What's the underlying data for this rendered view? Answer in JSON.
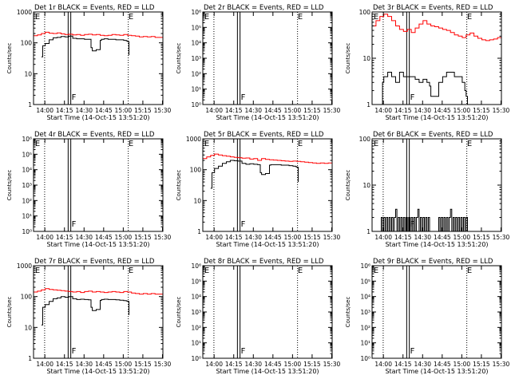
{
  "shared": {
    "ylabel": "Counts/sec",
    "xlabel": "Start Time (14-Oct-15 13:51:20)",
    "time_ticks": [
      "14:00",
      "14:15",
      "14:30",
      "14:45",
      "15:00",
      "15:15",
      "15:30"
    ],
    "legend_text": "BLACK = Events, RED = LLD",
    "events_color": "#000000",
    "lld_color": "#ff0000",
    "y_scale": "log",
    "grid": false
  },
  "chart_data": [
    {
      "type": "line",
      "title": "Det 1r BLACK = Events, RED = LLD",
      "x_tick_labels": [
        "14:00",
        "14:15",
        "14:30",
        "14:45",
        "15:00",
        "15:15",
        "15:30"
      ],
      "ylim": [
        1,
        1000
      ],
      "y_tick_labels": [
        "1",
        "10",
        "100",
        "1000"
      ],
      "markers": [
        {
          "label": "E",
          "time_min": 0.5
        },
        {
          "label": "F",
          "time_min": 28.5
        },
        {
          "label": "E",
          "time_min": 72.0
        }
      ],
      "dotted_lines_min": [
        8.5,
        72.5
      ],
      "solid_lines_min": [
        26.5,
        28.5
      ],
      "series": [
        {
          "color": "#ff0000",
          "x": [
            0,
            3,
            6,
            9,
            12,
            15,
            18,
            21,
            24,
            27,
            30,
            33,
            36,
            39,
            42,
            45,
            48,
            51,
            54,
            57,
            60,
            63,
            66,
            69,
            72,
            75,
            78,
            81,
            84,
            87,
            90,
            93,
            96,
            99
          ],
          "y": [
            170,
            180,
            200,
            220,
            205,
            200,
            210,
            195,
            185,
            190,
            180,
            185,
            175,
            185,
            190,
            180,
            185,
            175,
            170,
            175,
            185,
            180,
            175,
            185,
            175,
            170,
            165,
            155,
            160,
            155,
            160,
            150,
            150,
            160
          ]
        },
        {
          "color": "#000000",
          "x": [
            6,
            7,
            9,
            12,
            15,
            18,
            21,
            24,
            27,
            30,
            33,
            36,
            39,
            42,
            44,
            45,
            48,
            51,
            52,
            54,
            57,
            60,
            63,
            66,
            69,
            71,
            72,
            73
          ],
          "y": [
            35,
            80,
            95,
            125,
            145,
            150,
            160,
            155,
            165,
            140,
            135,
            135,
            130,
            130,
            70,
            55,
            60,
            120,
            130,
            135,
            130,
            130,
            125,
            125,
            120,
            115,
            110,
            40
          ]
        }
      ]
    },
    {
      "type": "line",
      "title": "Det 2r BLACK = Events, RED = LLD",
      "x_tick_labels": [
        "14:00",
        "14:15",
        "14:30",
        "14:45",
        "15:00",
        "15:15",
        "15:30"
      ],
      "ylim": [
        1,
        1000000
      ],
      "y_tick_labels": [
        "10⁰",
        "10¹",
        "10²",
        "10³",
        "10⁴",
        "10⁵",
        "10⁶"
      ],
      "markers": [
        {
          "label": "E",
          "time_min": 0.5
        },
        {
          "label": "F",
          "time_min": 28.5
        },
        {
          "label": "E",
          "time_min": 72.0
        }
      ],
      "dotted_lines_min": [
        8.5,
        72.5
      ],
      "solid_lines_min": [
        26.5,
        28.5
      ],
      "series": []
    },
    {
      "type": "line",
      "title": "Det 3r BLACK = Events, RED = LLD",
      "x_tick_labels": [
        "14:00",
        "14:15",
        "14:30",
        "14:45",
        "15:00",
        "15:15",
        "15:30"
      ],
      "ylim": [
        1,
        100
      ],
      "y_tick_labels": [
        "1",
        "10",
        "100"
      ],
      "markers": [
        {
          "label": "E",
          "time_min": 0.5
        },
        {
          "label": "F",
          "time_min": 28.5
        },
        {
          "label": "E",
          "time_min": 72.0
        }
      ],
      "dotted_lines_min": [
        8.5,
        72.5
      ],
      "solid_lines_min": [
        26.5,
        28.5
      ],
      "series": [
        {
          "color": "#ff0000",
          "x": [
            0,
            3,
            6,
            9,
            12,
            15,
            18,
            21,
            24,
            27,
            30,
            33,
            36,
            39,
            42,
            45,
            48,
            51,
            54,
            57,
            60,
            63,
            66,
            69,
            72,
            75,
            78,
            81,
            84,
            87,
            90,
            93,
            96,
            99
          ],
          "y": [
            50,
            65,
            80,
            90,
            80,
            65,
            50,
            42,
            38,
            42,
            36,
            45,
            55,
            65,
            55,
            50,
            48,
            45,
            42,
            40,
            36,
            32,
            30,
            28,
            32,
            35,
            30,
            27,
            25,
            24,
            25,
            26,
            28,
            40
          ]
        },
        {
          "color": "#000000",
          "x": [
            6,
            8,
            9,
            12,
            15,
            18,
            21,
            24,
            27,
            30,
            33,
            36,
            39,
            42,
            44,
            45,
            48,
            50,
            51,
            54,
            57,
            60,
            63,
            66,
            69,
            71,
            72,
            73
          ],
          "y": [
            1,
            3,
            4,
            5,
            4,
            3,
            5,
            4,
            4,
            4,
            3.5,
            3,
            3.5,
            3,
            2.5,
            1.5,
            1.5,
            1.5,
            3,
            4,
            5,
            5,
            4,
            4,
            3,
            2,
            1.5,
            1
          ]
        }
      ]
    },
    {
      "type": "line",
      "title": "Det 4r BLACK = Events, RED = LLD",
      "x_tick_labels": [
        "14:00",
        "14:15",
        "14:30",
        "14:45",
        "15:00",
        "15:15",
        "15:30"
      ],
      "ylim": [
        1,
        1000000
      ],
      "y_tick_labels": [
        "10⁰",
        "10¹",
        "10²",
        "10³",
        "10⁴",
        "10⁵",
        "10⁶"
      ],
      "markers": [
        {
          "label": "E",
          "time_min": 0.5
        },
        {
          "label": "F",
          "time_min": 28.5
        },
        {
          "label": "E",
          "time_min": 72.0
        }
      ],
      "dotted_lines_min": [
        8.5,
        72.5
      ],
      "solid_lines_min": [
        26.5,
        28.5
      ],
      "series": []
    },
    {
      "type": "line",
      "title": "Det 5r BLACK = Events, RED = LLD",
      "x_tick_labels": [
        "14:00",
        "14:15",
        "14:30",
        "14:45",
        "15:00",
        "15:15",
        "15:30"
      ],
      "ylim": [
        1,
        1000
      ],
      "y_tick_labels": [
        "1",
        "10",
        "100",
        "1000"
      ],
      "markers": [
        {
          "label": "E",
          "time_min": 0.5
        },
        {
          "label": "F",
          "time_min": 28.5
        },
        {
          "label": "E",
          "time_min": 72.0
        }
      ],
      "dotted_lines_min": [
        8.5,
        72.5
      ],
      "solid_lines_min": [
        26.5,
        28.5
      ],
      "series": [
        {
          "color": "#ff0000",
          "x": [
            0,
            3,
            6,
            9,
            12,
            15,
            18,
            21,
            24,
            27,
            30,
            33,
            36,
            39,
            42,
            45,
            48,
            51,
            54,
            57,
            60,
            63,
            66,
            69,
            72,
            75,
            78,
            81,
            84,
            87,
            90,
            93,
            96,
            99
          ],
          "y": [
            230,
            260,
            290,
            320,
            300,
            285,
            275,
            260,
            250,
            245,
            235,
            240,
            220,
            230,
            200,
            230,
            215,
            210,
            205,
            200,
            195,
            190,
            185,
            190,
            185,
            180,
            175,
            170,
            165,
            160,
            165,
            160,
            165,
            170
          ]
        },
        {
          "color": "#000000",
          "x": [
            6,
            7,
            9,
            12,
            15,
            18,
            21,
            24,
            27,
            30,
            33,
            36,
            39,
            42,
            44,
            45,
            48,
            51,
            52,
            54,
            57,
            60,
            63,
            66,
            69,
            71,
            72,
            73
          ],
          "y": [
            25,
            80,
            110,
            130,
            160,
            180,
            200,
            195,
            190,
            160,
            150,
            155,
            150,
            145,
            80,
            70,
            75,
            140,
            145,
            145,
            145,
            140,
            140,
            135,
            130,
            125,
            120,
            40
          ]
        }
      ]
    },
    {
      "type": "line",
      "title": "Det 6r BLACK = Events, RED = LLD",
      "x_tick_labels": [
        "14:00",
        "14:15",
        "14:30",
        "14:45",
        "15:00",
        "15:15",
        "15:30"
      ],
      "ylim": [
        1,
        100
      ],
      "y_tick_labels": [
        "1",
        "10",
        "100"
      ],
      "markers": [
        {
          "label": "E",
          "time_min": 0.5
        },
        {
          "label": "F",
          "time_min": 28.5
        },
        {
          "label": "E",
          "time_min": 72.0
        }
      ],
      "dotted_lines_min": [
        8.5,
        72.5
      ],
      "solid_lines_min": [
        26.5,
        28.5
      ],
      "series": [
        {
          "color": "#000000",
          "x": [
            6,
            7,
            8,
            9,
            10,
            11,
            12,
            13,
            14,
            15,
            16,
            17,
            18,
            19,
            20,
            21,
            22,
            23,
            24,
            25,
            26,
            27,
            28,
            29,
            30,
            31,
            32,
            33,
            34,
            35,
            36,
            37,
            38,
            39,
            40,
            41,
            42,
            43,
            44,
            50,
            51,
            52,
            53,
            54,
            55,
            56,
            57,
            58,
            59,
            60,
            61,
            62,
            63,
            64,
            65,
            66,
            67,
            68,
            69,
            70,
            71,
            72,
            73
          ],
          "y": [
            1,
            2,
            1,
            2,
            1,
            2,
            1,
            2,
            1,
            2,
            1,
            2,
            3,
            1,
            2,
            1,
            2,
            1,
            2,
            1,
            2,
            1,
            2,
            1,
            2,
            1,
            2,
            1,
            2,
            3,
            1,
            2,
            1,
            2,
            1,
            2,
            1,
            2,
            1,
            1,
            2,
            1,
            2,
            1,
            2,
            1,
            2,
            1,
            2,
            3,
            1,
            2,
            1,
            2,
            1,
            2,
            1,
            2,
            1,
            2,
            1,
            2,
            1
          ]
        }
      ]
    },
    {
      "type": "line",
      "title": "Det 7r BLACK = Events, RED = LLD",
      "x_tick_labels": [
        "14:00",
        "14:15",
        "14:30",
        "14:45",
        "15:00",
        "15:15",
        "15:30"
      ],
      "ylim": [
        1,
        1000
      ],
      "y_tick_labels": [
        "1",
        "10",
        "100",
        "1000"
      ],
      "markers": [
        {
          "label": "E",
          "time_min": 0.5
        },
        {
          "label": "F",
          "time_min": 28.5
        },
        {
          "label": "E",
          "time_min": 72.0
        }
      ],
      "dotted_lines_min": [
        8.5,
        72.5
      ],
      "solid_lines_min": [
        26.5,
        28.5
      ],
      "series": [
        {
          "color": "#ff0000",
          "x": [
            0,
            3,
            6,
            9,
            12,
            15,
            18,
            21,
            24,
            27,
            30,
            33,
            36,
            39,
            42,
            45,
            48,
            51,
            54,
            57,
            60,
            63,
            66,
            69,
            72,
            75,
            78,
            81,
            84,
            87,
            90,
            93,
            96,
            99
          ],
          "y": [
            140,
            150,
            165,
            180,
            170,
            165,
            160,
            155,
            150,
            145,
            140,
            145,
            135,
            145,
            150,
            140,
            145,
            140,
            135,
            140,
            145,
            140,
            135,
            145,
            140,
            130,
            125,
            120,
            125,
            120,
            125,
            120,
            120,
            125
          ]
        },
        {
          "color": "#000000",
          "x": [
            6,
            7,
            9,
            12,
            15,
            18,
            21,
            24,
            27,
            30,
            33,
            36,
            39,
            42,
            44,
            45,
            48,
            51,
            52,
            54,
            57,
            60,
            63,
            66,
            69,
            71,
            72,
            73
          ],
          "y": [
            12,
            45,
            55,
            70,
            85,
            90,
            100,
            95,
            100,
            85,
            80,
            82,
            80,
            78,
            45,
            35,
            38,
            75,
            80,
            82,
            80,
            80,
            78,
            76,
            74,
            72,
            70,
            25
          ]
        }
      ]
    },
    {
      "type": "line",
      "title": "Det 8r BLACK = Events, RED = LLD",
      "x_tick_labels": [
        "14:00",
        "14:15",
        "14:30",
        "14:45",
        "15:00",
        "15:15",
        "15:30"
      ],
      "ylim": [
        1,
        1000000
      ],
      "y_tick_labels": [
        "10⁰",
        "10¹",
        "10²",
        "10³",
        "10⁴",
        "10⁵",
        "10⁶"
      ],
      "markers": [
        {
          "label": "E",
          "time_min": 0.5
        },
        {
          "label": "F",
          "time_min": 28.5
        },
        {
          "label": "E",
          "time_min": 72.0
        }
      ],
      "dotted_lines_min": [
        8.5,
        72.5
      ],
      "solid_lines_min": [
        26.5,
        28.5
      ],
      "series": []
    },
    {
      "type": "line",
      "title": "Det 9r BLACK = Events, RED = LLD",
      "x_tick_labels": [
        "14:00",
        "14:15",
        "14:30",
        "14:45",
        "15:00",
        "15:15",
        "15:30"
      ],
      "ylim": [
        1,
        1000000
      ],
      "y_tick_labels": [
        "10⁰",
        "10¹",
        "10²",
        "10³",
        "10⁴",
        "10⁵",
        "10⁶"
      ],
      "markers": [
        {
          "label": "E",
          "time_min": 0.5
        },
        {
          "label": "F",
          "time_min": 28.5
        },
        {
          "label": "E",
          "time_min": 72.0
        }
      ],
      "dotted_lines_min": [
        8.5,
        72.5
      ],
      "solid_lines_min": [
        26.5,
        28.5
      ],
      "series": []
    }
  ]
}
